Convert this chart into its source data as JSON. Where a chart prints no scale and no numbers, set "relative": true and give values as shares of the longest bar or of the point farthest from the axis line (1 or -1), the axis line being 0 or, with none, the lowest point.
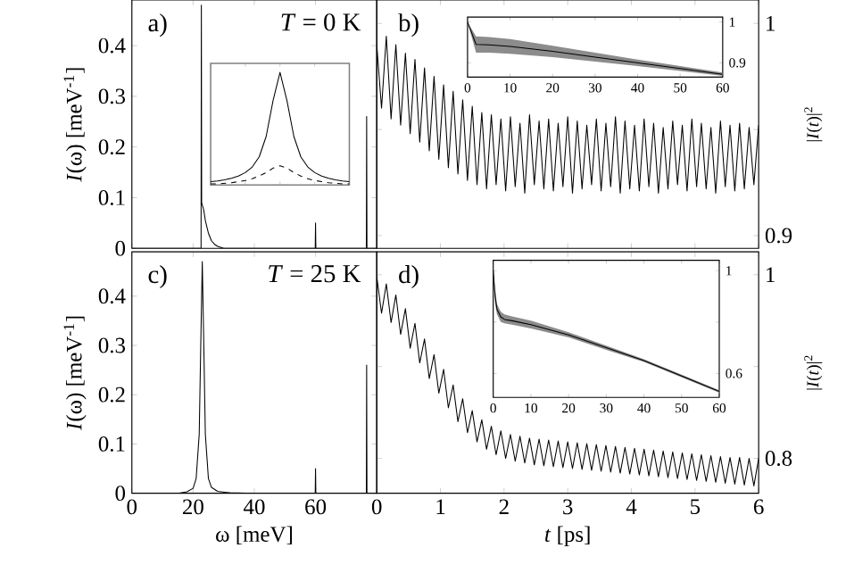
{
  "chart_data": [
    {
      "type": "line",
      "ylabel": "*I*(ω) [meV$^{-1}$]",
      "annotations": [
        "a)",
        "*T* = 0 K"
      ],
      "xlim": [
        0,
        80
      ],
      "xticks": [
        0,
        20,
        40,
        60
      ],
      "ylim": [
        0,
        0.49
      ],
      "yticks": [
        0,
        0.1,
        0.2,
        0.3,
        0.4
      ],
      "tick_labels": "y",
      "series": [
        {
          "color": "#000000",
          "x": [
            0,
            22.5,
            22.6,
            22.7,
            22.8,
            23.5,
            24,
            25,
            26,
            27,
            28,
            30,
            59.8,
            59.9,
            60,
            60.1,
            60.2,
            76.5,
            76.6,
            76.7,
            76.8,
            76.9,
            80
          ],
          "values": [
            0,
            0,
            0,
            0.48,
            0.09,
            0.075,
            0.055,
            0.03,
            0.015,
            0.008,
            0.004,
            0,
            0,
            0,
            0.05,
            0,
            0,
            0,
            0,
            0.26,
            0,
            0,
            0
          ]
        }
      ]
    },
    {
      "type": "line",
      "relative": true,
      "categories": [
        null,
        null,
        null,
        null,
        null,
        null,
        null,
        null,
        null,
        null,
        null,
        null,
        null,
        null,
        null,
        null,
        null,
        null,
        null,
        null,
        null
      ],
      "series": [
        {
          "color": "#000000",
          "values": [
            0.03,
            0.036,
            0.046,
            0.06,
            0.08,
            0.11,
            0.16,
            0.25,
            0.43,
            0.75,
            1,
            0.75,
            0.43,
            0.25,
            0.16,
            0.11,
            0.08,
            0.06,
            0.046,
            0.036,
            0.03
          ]
        },
        {
          "color": "#000000",
          "line_style": "dashed",
          "values": [
            0.01,
            0.01,
            0.015,
            0.02,
            0.03,
            0.04,
            0.055,
            0.08,
            0.11,
            0.15,
            0.17,
            0.15,
            0.11,
            0.08,
            0.055,
            0.04,
            0.03,
            0.02,
            0.015,
            0.01,
            0.01
          ]
        }
      ]
    },
    {
      "type": "line",
      "annotations": [
        "b)"
      ],
      "xlim": [
        0,
        6
      ],
      "xticks": [
        0,
        1,
        2,
        3,
        4,
        5,
        6
      ],
      "y2label": "|*I*(*t*)|$^{2}$",
      "y2lim": [
        0.894,
        1.011
      ],
      "y2ticks": [
        0.9,
        {
          "value": 0.95,
          "label": null
        },
        1
      ],
      "tick_labels": "y",
      "series": [
        {
          "color": "#000000",
          "axis": "y2",
          "x": [
            0,
            0.075,
            0.15,
            0.225,
            0.3,
            0.375,
            0.45,
            0.525,
            0.6,
            0.675,
            0.75,
            0.825,
            0.9,
            0.975,
            1.05,
            1.125,
            1.2,
            1.275,
            1.35,
            1.425,
            1.5,
            1.575,
            1.65,
            1.725,
            1.8,
            1.875,
            1.95,
            2.025,
            2.1,
            2.175,
            2.25,
            2.325,
            2.4,
            2.475,
            2.55,
            2.625,
            2.7,
            2.775,
            2.85,
            2.925,
            3,
            3.075,
            3.15,
            3.225,
            3.3,
            3.375,
            3.45,
            3.525,
            3.6,
            3.675,
            3.75,
            3.825,
            3.9,
            3.975,
            4.05,
            4.125,
            4.2,
            4.275,
            4.35,
            4.425,
            4.5,
            4.575,
            4.65,
            4.725,
            4.8,
            4.875,
            4.95,
            5.025,
            5.1,
            5.175,
            5.25,
            5.325,
            5.4,
            5.475,
            5.55,
            5.625,
            5.7,
            5.775,
            5.85,
            5.925,
            6
          ],
          "values": [
            0.99,
            0.96,
            0.994,
            0.955,
            0.99,
            0.952,
            0.986,
            0.948,
            0.983,
            0.944,
            0.979,
            0.94,
            0.975,
            0.936,
            0.971,
            0.932,
            0.968,
            0.929,
            0.964,
            0.926,
            0.961,
            0.924,
            0.958,
            0.922,
            0.957,
            0.924,
            0.955,
            0.921,
            0.956,
            0.923,
            0.953,
            0.92,
            0.957,
            0.924,
            0.954,
            0.922,
            0.955,
            0.921,
            0.953,
            0.923,
            0.956,
            0.92,
            0.954,
            0.922,
            0.952,
            0.924,
            0.955,
            0.921,
            0.953,
            0.923,
            0.956,
            0.92,
            0.954,
            0.922,
            0.952,
            0.921,
            0.955,
            0.923,
            0.953,
            0.92,
            0.951,
            0.922,
            0.954,
            0.924,
            0.952,
            0.921,
            0.955,
            0.923,
            0.953,
            0.922,
            0.951,
            0.92,
            0.954,
            0.923,
            0.952,
            0.921,
            0.953,
            0.922,
            0.951,
            0.924,
            0.952
          ]
        }
      ]
    },
    {
      "type": "line",
      "xlim": [
        0,
        60
      ],
      "xticks": [
        0,
        10,
        20,
        30,
        40,
        50,
        60
      ],
      "y2lim": [
        0.865,
        1.012
      ],
      "y2ticks": [
        0.9,
        1
      ],
      "series": [
        {
          "color": "#000000",
          "axis": "y2",
          "x": [
            0,
            2,
            5,
            10,
            20,
            30,
            40,
            50,
            60
          ],
          "values": [
            1,
            0.945,
            0.944,
            0.94,
            0.928,
            0.914,
            0.9,
            0.886,
            0.872
          ],
          "lower": [
            1,
            0.925,
            0.925,
            0.922,
            0.914,
            0.903,
            0.892,
            0.88,
            0.868
          ],
          "upper": [
            1,
            0.965,
            0.963,
            0.958,
            0.942,
            0.925,
            0.908,
            0.892,
            0.876
          ]
        }
      ]
    },
    {
      "type": "line",
      "xlabel": "ω [meV]",
      "ylabel": "*I*(ω) [meV$^{-1}$]",
      "annotations": [
        "c)",
        "*T* = 25 K"
      ],
      "xlim": [
        0,
        80
      ],
      "xticks": [
        0,
        20,
        40,
        60
      ],
      "ylim": [
        0,
        0.49
      ],
      "yticks": [
        0,
        0.1,
        0.2,
        0.3,
        0.4
      ],
      "series": [
        {
          "color": "#000000",
          "x": [
            0,
            15,
            18,
            20,
            21,
            22,
            22.5,
            23,
            23.5,
            24,
            25,
            26,
            28,
            32,
            40,
            59.9,
            60,
            60.1,
            76.6,
            76.7,
            76.8,
            80
          ],
          "values": [
            0,
            0,
            0.003,
            0.01,
            0.03,
            0.12,
            0.3,
            0.47,
            0.3,
            0.12,
            0.03,
            0.012,
            0.004,
            0.001,
            0,
            0,
            0.05,
            0,
            0,
            0.26,
            0,
            0
          ]
        }
      ]
    },
    {
      "type": "line",
      "xlabel": "*t* [ps]",
      "annotations": [
        "d)"
      ],
      "xlim": [
        0,
        6
      ],
      "xticks": [
        0,
        1,
        2,
        3,
        4,
        5,
        6
      ],
      "y2label": "|*I*(*t*)|$^{2}$",
      "y2lim": [
        0.762,
        1.025
      ],
      "y2ticks": [
        0.8,
        {
          "value": 0.9,
          "label": null
        },
        1
      ],
      "series": [
        {
          "color": "#000000",
          "axis": "y2",
          "x": [
            0,
            0.075,
            0.15,
            0.225,
            0.3,
            0.375,
            0.45,
            0.525,
            0.6,
            0.675,
            0.75,
            0.825,
            0.9,
            0.975,
            1.05,
            1.125,
            1.2,
            1.275,
            1.35,
            1.425,
            1.5,
            1.575,
            1.65,
            1.725,
            1.8,
            1.875,
            1.95,
            2.025,
            2.1,
            2.175,
            2.25,
            2.325,
            2.4,
            2.475,
            2.55,
            2.625,
            2.7,
            2.775,
            2.85,
            2.925,
            3,
            3.075,
            3.15,
            3.225,
            3.3,
            3.375,
            3.45,
            3.525,
            3.6,
            3.675,
            3.75,
            3.825,
            3.9,
            3.975,
            4.05,
            4.125,
            4.2,
            4.275,
            4.35,
            4.425,
            4.5,
            4.575,
            4.65,
            4.725,
            4.8,
            4.875,
            4.95,
            5.025,
            5.1,
            5.175,
            5.25,
            5.325,
            5.4,
            5.475,
            5.55,
            5.625,
            5.7,
            5.775,
            5.85,
            5.925,
            6
          ],
          "values": [
            0.998,
            0.958,
            0.99,
            0.948,
            0.978,
            0.935,
            0.963,
            0.92,
            0.947,
            0.904,
            0.93,
            0.887,
            0.913,
            0.871,
            0.897,
            0.855,
            0.88,
            0.84,
            0.865,
            0.828,
            0.852,
            0.818,
            0.842,
            0.81,
            0.835,
            0.804,
            0.83,
            0.8,
            0.826,
            0.797,
            0.824,
            0.795,
            0.822,
            0.793,
            0.821,
            0.792,
            0.82,
            0.791,
            0.819,
            0.79,
            0.818,
            0.789,
            0.817,
            0.788,
            0.816,
            0.787,
            0.815,
            0.786,
            0.814,
            0.785,
            0.813,
            0.784,
            0.812,
            0.783,
            0.811,
            0.782,
            0.81,
            0.781,
            0.809,
            0.78,
            0.808,
            0.779,
            0.807,
            0.778,
            0.806,
            0.777,
            0.805,
            0.776,
            0.804,
            0.775,
            0.803,
            0.774,
            0.802,
            0.773,
            0.801,
            0.772,
            0.801,
            0.771,
            0.8,
            0.77,
            0.8
          ]
        }
      ]
    },
    {
      "type": "line",
      "xlim": [
        0,
        60
      ],
      "xticks": [
        0,
        10,
        20,
        30,
        40,
        50,
        60
      ],
      "y2lim": [
        0.507,
        1.04
      ],
      "y2ticks": [
        0.6,
        {
          "value": 0.8,
          "label": null
        },
        1
      ],
      "series": [
        {
          "color": "#000000",
          "axis": "y2",
          "x": [
            0,
            0.5,
            1,
            2,
            3,
            5,
            10,
            20,
            30,
            40,
            50,
            60
          ],
          "values": [
            1,
            0.9,
            0.85,
            0.82,
            0.81,
            0.805,
            0.79,
            0.75,
            0.7,
            0.65,
            0.59,
            0.53
          ],
          "lower": [
            0.99,
            0.87,
            0.83,
            0.8,
            0.795,
            0.79,
            0.775,
            0.74,
            0.692,
            0.645,
            0.585,
            0.525
          ],
          "upper": [
            1,
            0.93,
            0.87,
            0.84,
            0.83,
            0.822,
            0.805,
            0.76,
            0.708,
            0.655,
            0.595,
            0.535
          ]
        }
      ]
    }
  ]
}
